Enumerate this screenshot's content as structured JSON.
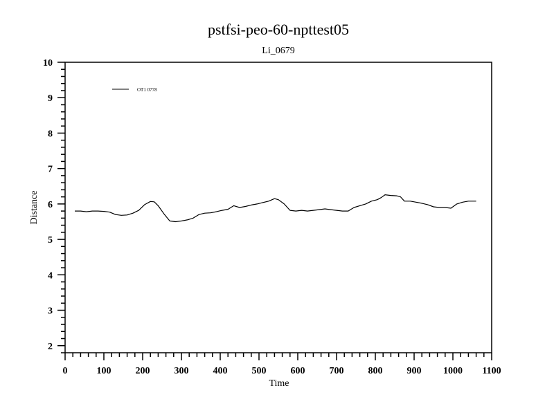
{
  "chart_data": {
    "type": "line",
    "title": "pstfsi-peo-60-npttest05",
    "subtitle": "Li_0679",
    "xlabel": "Time",
    "ylabel": "Distance",
    "xlim": [
      0,
      1100
    ],
    "ylim": [
      1.8,
      10
    ],
    "x_major_ticks": [
      0,
      100,
      200,
      300,
      400,
      500,
      600,
      700,
      800,
      900,
      1000,
      1100
    ],
    "y_major_ticks": [
      2,
      3,
      4,
      5,
      6,
      7,
      8,
      9,
      10
    ],
    "x_minor_step": 20,
    "y_minor_step": 0.2,
    "grid": false,
    "legend_placement": "top-left",
    "series": [
      {
        "name": "OT1 0778",
        "color": "#000000",
        "x": [
          25,
          40,
          55,
          70,
          85,
          100,
          115,
          130,
          145,
          160,
          175,
          190,
          205,
          220,
          230,
          240,
          255,
          270,
          285,
          300,
          315,
          330,
          345,
          360,
          375,
          390,
          405,
          420,
          435,
          450,
          465,
          480,
          495,
          510,
          525,
          540,
          550,
          565,
          580,
          595,
          610,
          625,
          640,
          655,
          670,
          685,
          700,
          715,
          730,
          745,
          760,
          775,
          790,
          805,
          815,
          825,
          840,
          855,
          865,
          875,
          890,
          905,
          920,
          935,
          950,
          965,
          980,
          995,
          1010,
          1025,
          1040,
          1060
        ],
        "y": [
          5.8,
          5.8,
          5.78,
          5.8,
          5.8,
          5.79,
          5.77,
          5.7,
          5.68,
          5.69,
          5.74,
          5.82,
          5.98,
          6.07,
          6.06,
          5.95,
          5.72,
          5.52,
          5.5,
          5.52,
          5.55,
          5.6,
          5.7,
          5.74,
          5.75,
          5.78,
          5.82,
          5.85,
          5.95,
          5.9,
          5.93,
          5.97,
          6.0,
          6.04,
          6.08,
          6.15,
          6.12,
          6.0,
          5.82,
          5.8,
          5.82,
          5.8,
          5.82,
          5.84,
          5.86,
          5.84,
          5.82,
          5.8,
          5.8,
          5.9,
          5.95,
          6.0,
          6.08,
          6.12,
          6.18,
          6.26,
          6.24,
          6.23,
          6.2,
          6.08,
          6.08,
          6.05,
          6.02,
          5.98,
          5.92,
          5.9,
          5.9,
          5.88,
          6.0,
          6.05,
          6.08,
          6.08
        ]
      }
    ]
  }
}
